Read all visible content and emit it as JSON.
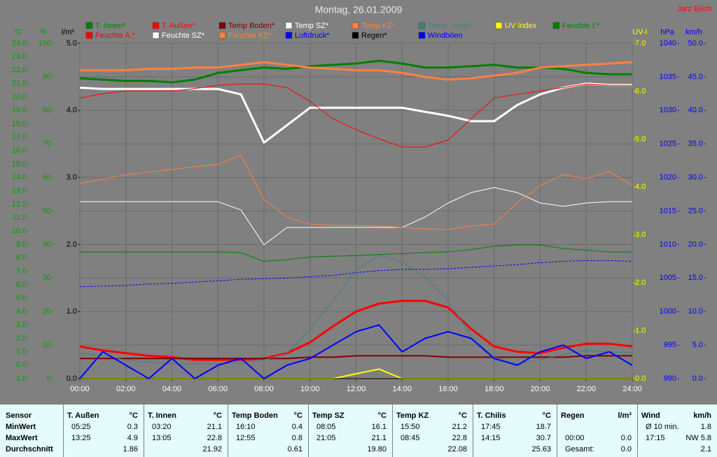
{
  "chart_data": {
    "type": "line",
    "title": "Montag, 26.01.2009",
    "author": "Jarz Erich",
    "xlim": [
      0,
      24
    ],
    "xticks": [
      {
        "value": 0,
        "label": "00:00"
      },
      {
        "value": 2,
        "label": "02:00"
      },
      {
        "value": 4,
        "label": "04:00"
      },
      {
        "value": 6,
        "label": "06:00"
      },
      {
        "value": 8,
        "label": "08:00"
      },
      {
        "value": 10,
        "label": "10:00"
      },
      {
        "value": 12,
        "label": "12:00"
      },
      {
        "value": 14,
        "label": "14:00"
      },
      {
        "value": 16,
        "label": "16:00"
      },
      {
        "value": 18,
        "label": "18:00"
      },
      {
        "value": 20,
        "label": "20:00"
      },
      {
        "value": 22,
        "label": "22:00"
      },
      {
        "value": 24,
        "label": "24:00"
      }
    ],
    "x": [
      0,
      1,
      2,
      3,
      4,
      5,
      6,
      7,
      8,
      9,
      10,
      11,
      12,
      13,
      14,
      15,
      16,
      17,
      18,
      19,
      20,
      21,
      22,
      23,
      24
    ],
    "grid": true,
    "axes": [
      {
        "unit": "°C",
        "color": "#00a000",
        "lim": [
          -1,
          24
        ],
        "ticks": [
          {
            "value": -1,
            "label": "-1.0"
          },
          {
            "value": 0,
            "label": "0.0"
          },
          {
            "value": 1,
            "label": "1.0"
          },
          {
            "value": 2,
            "label": "2.0"
          },
          {
            "value": 3,
            "label": "3.0"
          },
          {
            "value": 4,
            "label": "4.0"
          },
          {
            "value": 5,
            "label": "5.0"
          },
          {
            "value": 6,
            "label": "6.0"
          },
          {
            "value": 7,
            "label": "7.0"
          },
          {
            "value": 8,
            "label": "8.0"
          },
          {
            "value": 9,
            "label": "9.0"
          },
          {
            "value": 10,
            "label": "10.0"
          },
          {
            "value": 11,
            "label": "11.0"
          },
          {
            "value": 12,
            "label": "12.0"
          },
          {
            "value": 13,
            "label": "13.0"
          },
          {
            "value": 14,
            "label": "14.0"
          },
          {
            "value": 15,
            "label": "15.0"
          },
          {
            "value": 16,
            "label": "16.0"
          },
          {
            "value": 17,
            "label": "17.0"
          },
          {
            "value": 18,
            "label": "18.0"
          },
          {
            "value": 19,
            "label": "19.0"
          },
          {
            "value": 20,
            "label": "20.0"
          },
          {
            "value": 21,
            "label": "21.0"
          },
          {
            "value": 22,
            "label": "22.0"
          },
          {
            "value": 23,
            "label": "23.0"
          },
          {
            "value": 24,
            "label": "24.0"
          }
        ]
      },
      {
        "unit": "%",
        "color": "#00a000",
        "lim": [
          0,
          100
        ],
        "ticks": [
          0,
          10,
          20,
          30,
          40,
          50,
          60,
          70,
          80,
          90,
          100
        ]
      },
      {
        "unit": "l/m²",
        "color": "#000000",
        "lim": [
          0,
          5
        ],
        "ticks": [
          {
            "value": 0,
            "label": "0.0"
          },
          {
            "value": 1,
            "label": "1.0"
          },
          {
            "value": 2,
            "label": "2.0"
          },
          {
            "value": 3,
            "label": "3.0"
          },
          {
            "value": 4,
            "label": "4.0"
          },
          {
            "value": 5,
            "label": "5.0"
          }
        ]
      },
      {
        "unit": "UV-I",
        "color": "#ffff00",
        "lim": [
          0,
          7
        ],
        "ticks": [
          {
            "value": 0,
            "label": "0.0"
          },
          {
            "value": 1,
            "label": "1.0"
          },
          {
            "value": 2,
            "label": "2.0"
          },
          {
            "value": 3,
            "label": "3.0"
          },
          {
            "value": 4,
            "label": "4.0"
          },
          {
            "value": 5,
            "label": "5.0"
          },
          {
            "value": 6,
            "label": "6.0"
          },
          {
            "value": 7,
            "label": "7.0"
          }
        ]
      },
      {
        "unit": "hPa",
        "color": "#0000ff",
        "lim": [
          990,
          1040
        ],
        "ticks": [
          990,
          995,
          1000,
          1005,
          1010,
          1015,
          1020,
          1025,
          1030,
          1035,
          1040
        ]
      },
      {
        "unit": "km/h",
        "color": "#0000ff",
        "lim": [
          0,
          50
        ],
        "ticks": [
          {
            "value": 0,
            "label": "0.0"
          },
          {
            "value": 5,
            "label": "5.0"
          },
          {
            "value": 10,
            "label": "10.0"
          },
          {
            "value": 15,
            "label": "15.0"
          },
          {
            "value": 20,
            "label": "20.0"
          },
          {
            "value": 25,
            "label": "25.0"
          },
          {
            "value": 30,
            "label": "30.0"
          },
          {
            "value": 35,
            "label": "35.0"
          },
          {
            "value": 40,
            "label": "40.0"
          },
          {
            "value": 45,
            "label": "45.0"
          },
          {
            "value": 50,
            "label": "50.0"
          }
        ]
      }
    ],
    "series": [
      {
        "name": "T. Innen*",
        "color": "#008000",
        "axis": 0,
        "values": [
          21.4,
          21.3,
          21.2,
          21.2,
          21.1,
          21.3,
          21.8,
          22.0,
          22.2,
          22.1,
          22.3,
          22.4,
          22.5,
          22.7,
          22.5,
          22.2,
          22.2,
          22.3,
          22.4,
          22.2,
          22.2,
          22.1,
          21.8,
          21.7,
          21.7
        ]
      },
      {
        "name": "T. Außen*",
        "color": "#ff0000",
        "axis": 0,
        "values": [
          1.4,
          1.1,
          0.9,
          0.7,
          0.6,
          0.4,
          0.4,
          0.4,
          0.5,
          0.9,
          1.7,
          2.9,
          4.0,
          4.6,
          4.8,
          4.8,
          4.3,
          2.7,
          1.4,
          1.0,
          0.9,
          1.3,
          1.6,
          1.6,
          1.4
        ]
      },
      {
        "name": "Temp Boden*",
        "color": "#800000",
        "axis": 0,
        "values": [
          0.5,
          0.5,
          0.5,
          0.5,
          0.5,
          0.5,
          0.5,
          0.5,
          0.5,
          0.5,
          0.6,
          0.6,
          0.7,
          0.7,
          0.7,
          0.7,
          0.6,
          0.6,
          0.6,
          0.6,
          0.6,
          0.6,
          0.7,
          0.7,
          0.7
        ]
      },
      {
        "name": "Temp SZ*",
        "color": "#ffffff",
        "axis": 0,
        "values": [
          20.7,
          20.6,
          20.6,
          20.6,
          20.6,
          20.6,
          20.6,
          20.2,
          16.6,
          17.9,
          19.2,
          19.2,
          19.2,
          19.2,
          19.2,
          18.9,
          18.6,
          18.2,
          18.2,
          19.4,
          20.2,
          20.7,
          21.0,
          20.9,
          20.9
        ]
      },
      {
        "name": "Temp KZ*",
        "color": "#ff8040",
        "axis": 0,
        "values": [
          22.0,
          22.0,
          22.0,
          22.1,
          22.1,
          22.2,
          22.2,
          22.4,
          22.6,
          22.4,
          22.2,
          22.1,
          22.0,
          22.0,
          21.8,
          21.5,
          21.3,
          21.4,
          21.6,
          21.8,
          22.2,
          22.3,
          22.4,
          22.5,
          22.6
        ]
      },
      {
        "name": "Temp. Wind*",
        "color": "#408080",
        "axis": 0,
        "values": [
          0.9,
          0.7,
          0.4,
          0.2,
          0.1,
          0.1,
          0.1,
          0.2,
          0.4,
          0.9,
          2.7,
          4.8,
          7.1,
          8.2,
          7.7,
          6.6,
          4.8,
          2.2,
          0.6,
          0.1,
          0.4,
          0.8,
          1.1,
          1.0,
          0.9
        ]
      },
      {
        "name": "UV Index",
        "color": "#ffff00",
        "axis": 3,
        "values": [
          0,
          0,
          0,
          0,
          0,
          0,
          0,
          0,
          0,
          0,
          0,
          0,
          0.1,
          0.2,
          0,
          0,
          0,
          0,
          0,
          0,
          0,
          0,
          0,
          0,
          0
        ]
      },
      {
        "name": "Feuchte I.*",
        "color": "#008000",
        "axis": 1,
        "values": [
          37.8,
          37.8,
          37.8,
          37.8,
          37.8,
          37.8,
          37.8,
          37.6,
          35.0,
          35.5,
          36.3,
          36.5,
          36.7,
          37.0,
          37.3,
          37.6,
          37.8,
          38.5,
          39.5,
          39.9,
          39.9,
          38.8,
          38.3,
          37.8,
          37.8
        ]
      },
      {
        "name": "Feuchte A.*",
        "color": "#ff0000",
        "axis": 1,
        "values": [
          83.7,
          85.0,
          85.8,
          85.8,
          85.8,
          86.5,
          87.5,
          87.9,
          87.9,
          86.8,
          82.7,
          77.5,
          74.3,
          71.5,
          69.1,
          69.1,
          71.2,
          77.5,
          83.7,
          84.8,
          85.8,
          86.8,
          87.9,
          87.5,
          87.5
        ]
      },
      {
        "name": "Feuchte SZ*",
        "color": "#ffffff",
        "axis": 1,
        "values": [
          52.8,
          52.8,
          52.8,
          52.8,
          52.8,
          52.8,
          52.8,
          50.3,
          39.9,
          45.1,
          45.1,
          45.1,
          45.1,
          45.1,
          45.1,
          48.2,
          52.4,
          55.5,
          57.0,
          55.5,
          52.4,
          51.4,
          52.4,
          52.8,
          52.8
        ]
      },
      {
        "name": "Feuchte KZ*",
        "color": "#ff8040",
        "axis": 1,
        "values": [
          58.2,
          59.5,
          60.8,
          61.6,
          62.4,
          63.2,
          63.9,
          66.6,
          53.4,
          48.2,
          46.1,
          45.7,
          45.7,
          45.5,
          45.1,
          44.7,
          44.5,
          45.5,
          46.1,
          52.4,
          57.6,
          60.8,
          59.7,
          61.8,
          57.6
        ]
      },
      {
        "name": "Luftdruck*",
        "color": "#0000ff",
        "axis": 4,
        "values": [
          1003.7,
          1003.8,
          1003.9,
          1004.1,
          1004.2,
          1004.4,
          1004.6,
          1004.8,
          1004.9,
          1005.0,
          1005.2,
          1005.4,
          1005.8,
          1006.1,
          1006.3,
          1006.3,
          1006.4,
          1006.6,
          1006.8,
          1007.0,
          1007.3,
          1007.5,
          1007.6,
          1007.6,
          1007.5
        ]
      },
      {
        "name": "Regen*",
        "color": "#000000",
        "axis": 2,
        "values": [
          0,
          0,
          0,
          0,
          0,
          0,
          0,
          0,
          0,
          0,
          0,
          0,
          0,
          0,
          0,
          0,
          0,
          0,
          0,
          0,
          0,
          0,
          0,
          0,
          0
        ]
      },
      {
        "name": "Windböen",
        "color": "#0000ff",
        "axis": 5,
        "values": [
          0,
          4,
          2,
          0,
          3,
          0,
          2,
          3,
          0,
          2,
          3,
          5,
          7,
          8,
          4,
          6,
          7,
          6,
          3,
          2,
          4,
          5,
          3,
          4,
          2
        ]
      }
    ]
  },
  "table": {
    "sensor_header": "Sensor",
    "row_labels": [
      "MinWert",
      "MaxWert",
      "Durchschnitt"
    ],
    "columns": [
      {
        "name": "T. Außen",
        "unit": "°C",
        "cells": [
          {
            "left": "05:25",
            "right": "0.3"
          },
          {
            "left": "13:25",
            "right": "4.9"
          },
          {
            "right": "1.86"
          }
        ]
      },
      {
        "name": "T. Innen",
        "unit": "°C",
        "cells": [
          {
            "left": "03:20",
            "right": "21.1"
          },
          {
            "left": "13:05",
            "right": "22.8"
          },
          {
            "right": "21.92"
          }
        ]
      },
      {
        "name": "Temp Boden",
        "unit": "°C",
        "cells": [
          {
            "left": "16:10",
            "right": "0.4"
          },
          {
            "left": "12:55",
            "right": "0.8"
          },
          {
            "right": "0.61"
          }
        ]
      },
      {
        "name": "Temp SZ",
        "unit": "°C",
        "cells": [
          {
            "left": "08:05",
            "right": "16.1"
          },
          {
            "left": "21:05",
            "right": "21.1"
          },
          {
            "right": "19.80"
          }
        ]
      },
      {
        "name": "Temp KZ",
        "unit": "°C",
        "cells": [
          {
            "left": "15:50",
            "right": "21.2"
          },
          {
            "left": "08:45",
            "right": "22.8"
          },
          {
            "right": "22.08"
          }
        ]
      },
      {
        "name": "T. Chilis",
        "unit": "°C",
        "cells": [
          {
            "left": "17:45",
            "right": "18.7"
          },
          {
            "left": "14:15",
            "right": "30.7"
          },
          {
            "right": "25.63"
          }
        ]
      },
      {
        "name": "Regen",
        "unit": "l/m²",
        "cells": [
          {},
          {
            "left": "00:00",
            "right": "0.0"
          },
          {
            "left": "Gesamt:",
            "right": "0.0"
          }
        ]
      },
      {
        "name": "Wind",
        "unit": "km/h",
        "cells": [
          {
            "left": "Ø 10 min.",
            "right": "1.8"
          },
          {
            "left": "17:15",
            "right": "NW 5.8"
          },
          {
            "right": "2.1"
          }
        ]
      }
    ]
  }
}
